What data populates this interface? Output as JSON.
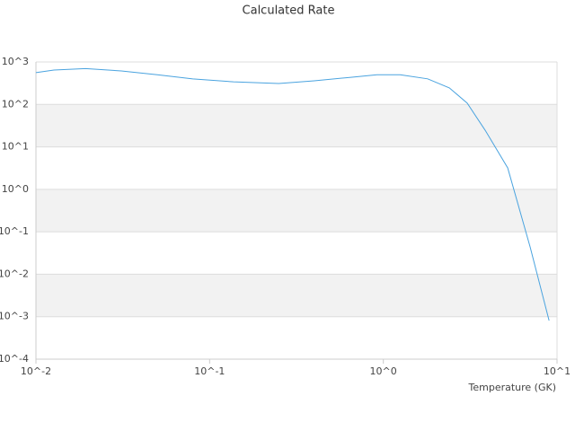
{
  "chart_data": {
    "type": "line",
    "title": "Calculated Rate",
    "x_label": "Temperature (GK)",
    "x_scale": "log",
    "y_scale": "log",
    "grid": true,
    "band_color": "#f2f2f2",
    "xlim": [
      0.01,
      10
    ],
    "ylim": [
      0.0001,
      1000
    ],
    "xticks": [
      {
        "value": 0.01,
        "label": "10^-2"
      },
      {
        "value": 0.1,
        "label": "10^-1"
      },
      {
        "value": 1,
        "label": "10^0"
      },
      {
        "value": 10,
        "label": "10^1"
      }
    ],
    "yticks": [
      {
        "value": 0.0001,
        "label": "10^-4"
      },
      {
        "value": 0.001,
        "label": "10^-3"
      },
      {
        "value": 0.01,
        "label": "10^-2"
      },
      {
        "value": 0.1,
        "label": "10^-1"
      },
      {
        "value": 1,
        "label": "10^0"
      },
      {
        "value": 10,
        "label": "10^1"
      },
      {
        "value": 100,
        "label": "10^2"
      },
      {
        "value": 1000,
        "label": "10^3"
      }
    ],
    "x": [
      0.01,
      0.0127,
      0.0193,
      0.031,
      0.05,
      0.08,
      0.137,
      0.25,
      0.4,
      0.65,
      0.92,
      1.25,
      1.8,
      2.4,
      3.04,
      3.86,
      5.2,
      7.0,
      9.0
    ],
    "series": [
      {
        "color": "#4aa3df",
        "values": [
          560,
          645,
          700,
          615,
          500,
          400,
          340,
          310,
          360,
          435,
          500,
          500,
          400,
          245,
          107,
          24.5,
          3.2,
          0.044,
          0.00081
        ]
      }
    ]
  }
}
